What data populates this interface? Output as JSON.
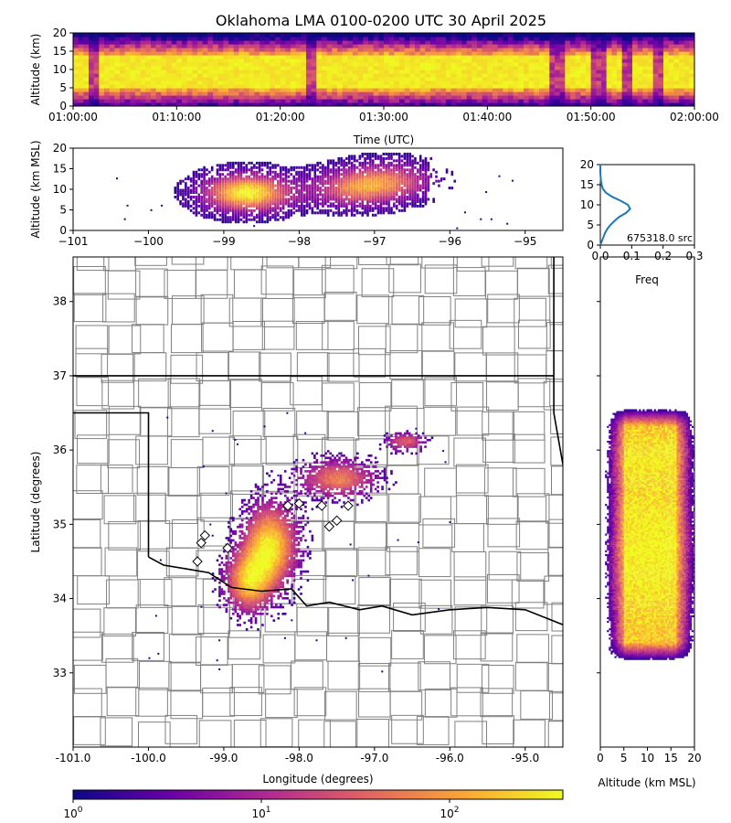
{
  "title": "Oklahoma LMA 0100-0200 UTC 30 April 2025",
  "colormap": [
    "#0d0887",
    "#6a00a8",
    "#b12a90",
    "#e16462",
    "#fca636",
    "#f0f921"
  ],
  "chart_data": [
    {
      "id": "time-height",
      "type": "heatmap",
      "xlabel": "Time (UTC)",
      "ylabel": "Altitude (km)",
      "xlim": [
        "01:00:00",
        "02:00:00"
      ],
      "ylim": [
        0,
        20
      ],
      "xticks": [
        "01:00:00",
        "01:10:00",
        "01:20:00",
        "01:30:00",
        "01:40:00",
        "01:50:00",
        "02:00:00"
      ],
      "yticks": [
        0,
        5,
        10,
        15,
        20
      ],
      "weak_periods_minutes": [
        [
          1.5,
          2.5
        ],
        [
          22.5,
          23.5
        ],
        [
          46,
          47.5
        ],
        [
          50,
          51.5
        ],
        [
          53,
          54
        ],
        [
          56,
          57
        ]
      ],
      "core_altitude_km": [
        5,
        14
      ]
    },
    {
      "id": "lon-alt",
      "type": "heatmap",
      "xlabel": "",
      "ylabel": "Altitude (km MSL)",
      "xlim": [
        -101.0,
        -94.5
      ],
      "ylim": [
        0,
        20
      ],
      "xticks": [
        -101,
        -100,
        -99,
        -98,
        -97,
        -96,
        -95
      ],
      "yticks": [
        0,
        5,
        10,
        15,
        20
      ],
      "cores": [
        {
          "lon": -98.7,
          "alt": 9.5,
          "strength": 1.0
        },
        {
          "lon": -97.3,
          "alt": 10.5,
          "strength": 0.55
        },
        {
          "lon": -96.8,
          "alt": 12.5,
          "strength": 0.5
        }
      ]
    },
    {
      "id": "altitude-histogram",
      "type": "line",
      "xlabel": "Freq",
      "ylabel": "",
      "xlim": [
        0.0,
        0.3
      ],
      "ylim": [
        0,
        20
      ],
      "xticks": [
        "0.0",
        "0.1",
        "0.2",
        "0.3"
      ],
      "yticks": [
        0,
        5,
        10,
        15,
        20
      ],
      "annotation": "675318.0 src",
      "series": [
        {
          "color": "#1f77b4",
          "alt": [
            0,
            1,
            2,
            3,
            4,
            5,
            6,
            7,
            8,
            9,
            10,
            11,
            12,
            13,
            14,
            15,
            16,
            17,
            18,
            19,
            20
          ],
          "freq": [
            0.0,
            0.005,
            0.01,
            0.015,
            0.022,
            0.032,
            0.045,
            0.06,
            0.082,
            0.095,
            0.088,
            0.065,
            0.038,
            0.018,
            0.008,
            0.004,
            0.002,
            0.001,
            0.0,
            0.0,
            0.0
          ]
        }
      ]
    },
    {
      "id": "plan-view",
      "type": "heatmap",
      "xlabel": "Longitude (degrees)",
      "ylabel": "Latitude (degrees)",
      "xlim": [
        -101.0,
        -94.5
      ],
      "ylim": [
        32.0,
        38.6
      ],
      "xticks": [
        "-101.0",
        "-100.0",
        "-99.0",
        "-98.0",
        "-97.0",
        "-96.0",
        "-95.0"
      ],
      "yticks": [
        33,
        34,
        35,
        36,
        37,
        38
      ],
      "stations": [
        {
          "lon": -98.15,
          "lat": 35.25
        },
        {
          "lon": -98.0,
          "lat": 35.28
        },
        {
          "lon": -97.7,
          "lat": 35.25
        },
        {
          "lon": -97.35,
          "lat": 35.25
        },
        {
          "lon": -97.5,
          "lat": 35.05
        },
        {
          "lon": -97.6,
          "lat": 34.97
        },
        {
          "lon": -99.25,
          "lat": 34.85
        },
        {
          "lon": -99.3,
          "lat": 34.75
        },
        {
          "lon": -98.95,
          "lat": 34.68
        },
        {
          "lon": -99.35,
          "lat": 34.5
        }
      ],
      "cores": [
        {
          "lon": -98.4,
          "lat": 34.7,
          "sx": 0.35,
          "sy": 0.55,
          "strength": 1.0
        },
        {
          "lon": -98.7,
          "lat": 34.2,
          "sx": 0.3,
          "sy": 0.4,
          "strength": 0.8
        },
        {
          "lon": -97.5,
          "lat": 35.6,
          "sx": 0.5,
          "sy": 0.25,
          "strength": 0.7
        },
        {
          "lon": -96.6,
          "lat": 36.1,
          "sx": 0.25,
          "sy": 0.12,
          "strength": 0.6
        }
      ]
    },
    {
      "id": "alt-lat",
      "type": "heatmap",
      "xlabel": "Altitude (km MSL)",
      "ylabel": "",
      "xlim": [
        0,
        20
      ],
      "ylim": [
        32.0,
        38.6
      ],
      "xticks": [
        0,
        5,
        10,
        15,
        20
      ],
      "lat_range": [
        33.15,
        36.55
      ],
      "core_altitude_km": [
        5,
        16
      ]
    },
    {
      "id": "colorbar",
      "type": "heatmap",
      "scale": "log",
      "range": [
        1,
        400
      ],
      "ticks": [
        {
          "value": 1,
          "base": "10",
          "exp": "0"
        },
        {
          "value": 10,
          "base": "10",
          "exp": "1"
        },
        {
          "value": 100,
          "base": "10",
          "exp": "2"
        }
      ]
    }
  ]
}
